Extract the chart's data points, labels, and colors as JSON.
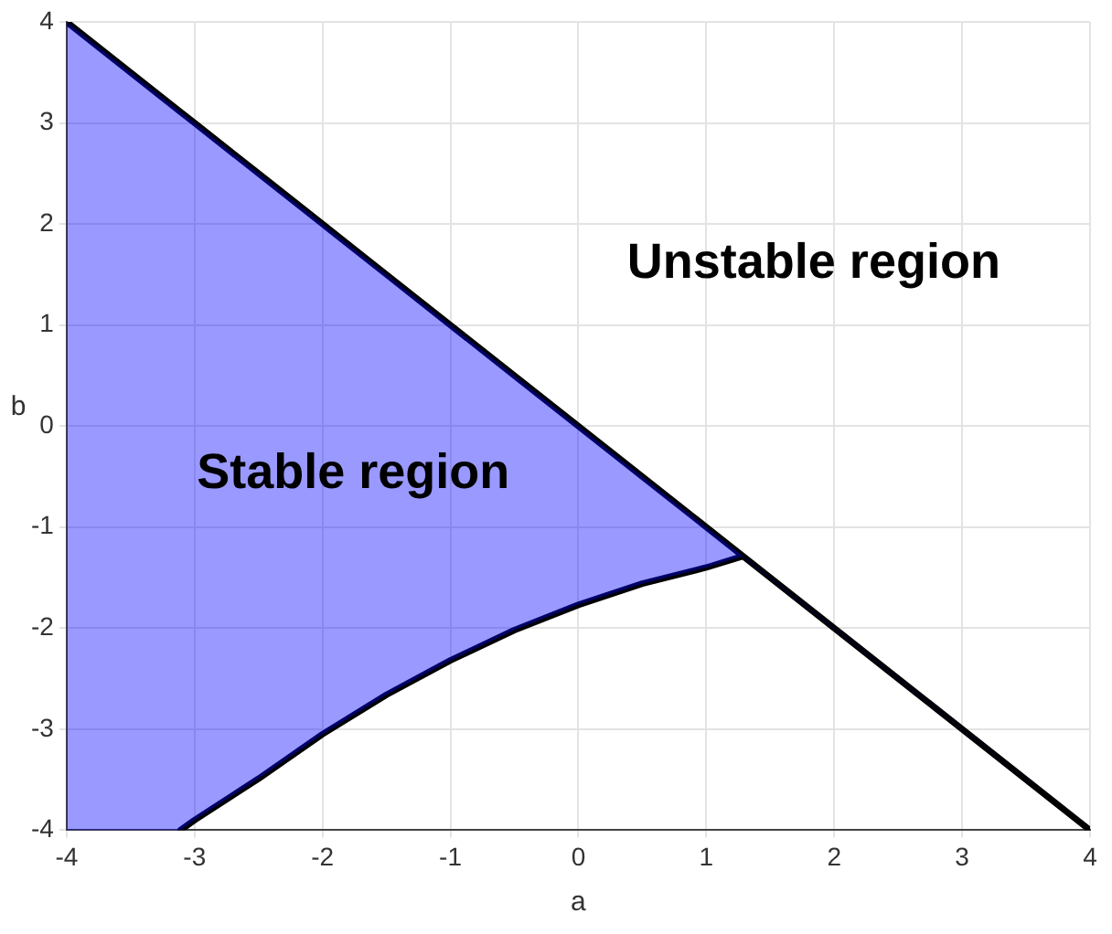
{
  "chart_data": {
    "type": "line",
    "xlabel": "a",
    "ylabel": "b",
    "xlim": [
      -4,
      4
    ],
    "ylim": [
      -4,
      4
    ],
    "xticks": [
      -4,
      -3,
      -2,
      -1,
      0,
      1,
      2,
      3,
      4
    ],
    "yticks": [
      -4,
      -3,
      -2,
      -1,
      0,
      1,
      2,
      3,
      4
    ],
    "grid": true,
    "legend": false,
    "marker": "none",
    "line_style": "solid",
    "series": [
      {
        "color": "#000000",
        "x": [
          -4,
          -3.11,
          -3,
          -2.5,
          -2,
          -1.5,
          -1,
          -0.5,
          0,
          0.5,
          1,
          1.28,
          4
        ],
        "values": [
          4,
          3.11,
          3,
          2.5,
          2,
          1.5,
          1,
          0.5,
          0,
          -0.5,
          -1,
          -1.28,
          -4
        ],
        "upper": [
          4,
          3.11,
          3,
          2.5,
          2,
          1.5,
          1,
          0.5,
          0,
          -0.5,
          -1,
          -1.28,
          -4
        ],
        "lower": [
          -4,
          -4,
          -3.9,
          -3.49,
          -3.05,
          -2.66,
          -2.32,
          -2.02,
          -1.77,
          -1.56,
          -1.4,
          -1.29,
          -4
        ]
      },
      {
        "color": "#000000",
        "x": [
          -3.11,
          -3,
          -2.5,
          -2,
          -1.5,
          -1,
          -0.5,
          0,
          0.5,
          1,
          1.28
        ],
        "values": [
          -4,
          -3.9,
          -3.49,
          -3.05,
          -2.66,
          -2.32,
          -2.02,
          -1.77,
          -1.56,
          -1.4,
          -1.29
        ]
      }
    ],
    "annotations": [
      "Stable region",
      "Unstable region"
    ]
  }
}
